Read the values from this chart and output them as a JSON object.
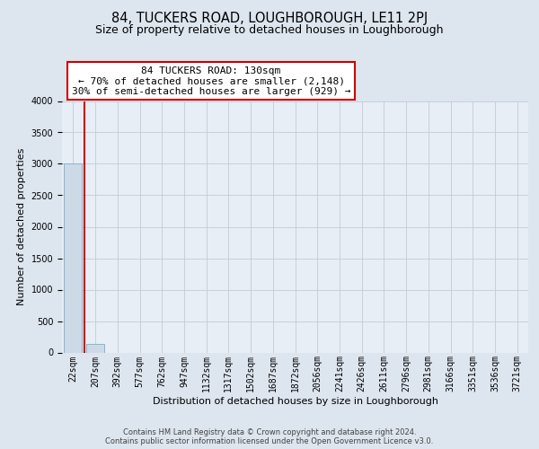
{
  "title": "84, TUCKERS ROAD, LOUGHBOROUGH, LE11 2PJ",
  "subtitle": "Size of property relative to detached houses in Loughborough",
  "xlabel": "Distribution of detached houses by size in Loughborough",
  "ylabel": "Number of detached properties",
  "categories": [
    "22sqm",
    "207sqm",
    "392sqm",
    "577sqm",
    "762sqm",
    "947sqm",
    "1132sqm",
    "1317sqm",
    "1502sqm",
    "1687sqm",
    "1872sqm",
    "2056sqm",
    "2241sqm",
    "2426sqm",
    "2611sqm",
    "2796sqm",
    "2981sqm",
    "3166sqm",
    "3351sqm",
    "3536sqm",
    "3721sqm"
  ],
  "bar_values": [
    3000,
    130,
    0,
    0,
    0,
    0,
    0,
    0,
    0,
    0,
    0,
    0,
    0,
    0,
    0,
    0,
    0,
    0,
    0,
    0,
    0
  ],
  "bar_color": "#ccdae8",
  "bar_edgecolor": "#88b4cc",
  "vline_x": 0.5,
  "vline_color": "#cc0000",
  "annotation_line1": "84 TUCKERS ROAD: 130sqm",
  "annotation_line2": "← 70% of detached houses are smaller (2,148)",
  "annotation_line3": "30% of semi-detached houses are larger (929) →",
  "annotation_box_facecolor": "#ffffff",
  "annotation_box_edgecolor": "#cc0000",
  "ylim": [
    0,
    4000
  ],
  "yticks": [
    0,
    500,
    1000,
    1500,
    2000,
    2500,
    3000,
    3500,
    4000
  ],
  "bg_color": "#dde5ee",
  "plot_bg_color": "#e8eef5",
  "grid_color": "#c0ccd8",
  "footer_line1": "Contains HM Land Registry data © Crown copyright and database right 2024.",
  "footer_line2": "Contains public sector information licensed under the Open Government Licence v3.0.",
  "title_fontsize": 10.5,
  "subtitle_fontsize": 9,
  "axis_label_fontsize": 8,
  "tick_fontsize": 7,
  "annotation_fontsize": 8,
  "footer_fontsize": 6
}
